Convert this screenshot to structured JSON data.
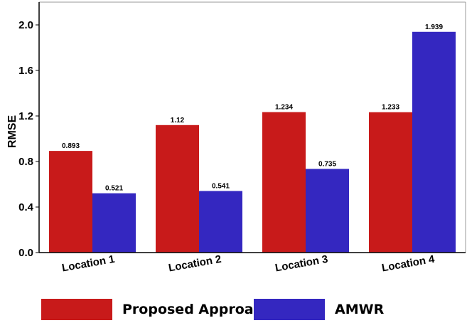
{
  "chart_data": {
    "type": "bar",
    "ylabel": "RMSE",
    "xlabel": "",
    "categories": [
      "Location 1",
      "Location 2",
      "Location 3",
      "Location 4"
    ],
    "series": [
      {
        "name": "Proposed Approach",
        "color": "#c81a1a",
        "values": [
          0.893,
          1.12,
          1.234,
          1.233
        ],
        "labels": [
          "0.893",
          "1.12",
          "1.234",
          "1.233"
        ]
      },
      {
        "name": "AMWR",
        "color": "#3427c0",
        "values": [
          0.521,
          0.541,
          0.735,
          1.939
        ],
        "labels": [
          "0.521",
          "0.541",
          "0.735",
          "1.939"
        ]
      }
    ],
    "ylim": [
      0,
      2.2
    ],
    "yticks": [
      "0.0",
      "0.4",
      "0.8",
      "1.2",
      "1.6",
      "2.0"
    ],
    "grid": false,
    "legend_position": "bottom"
  }
}
